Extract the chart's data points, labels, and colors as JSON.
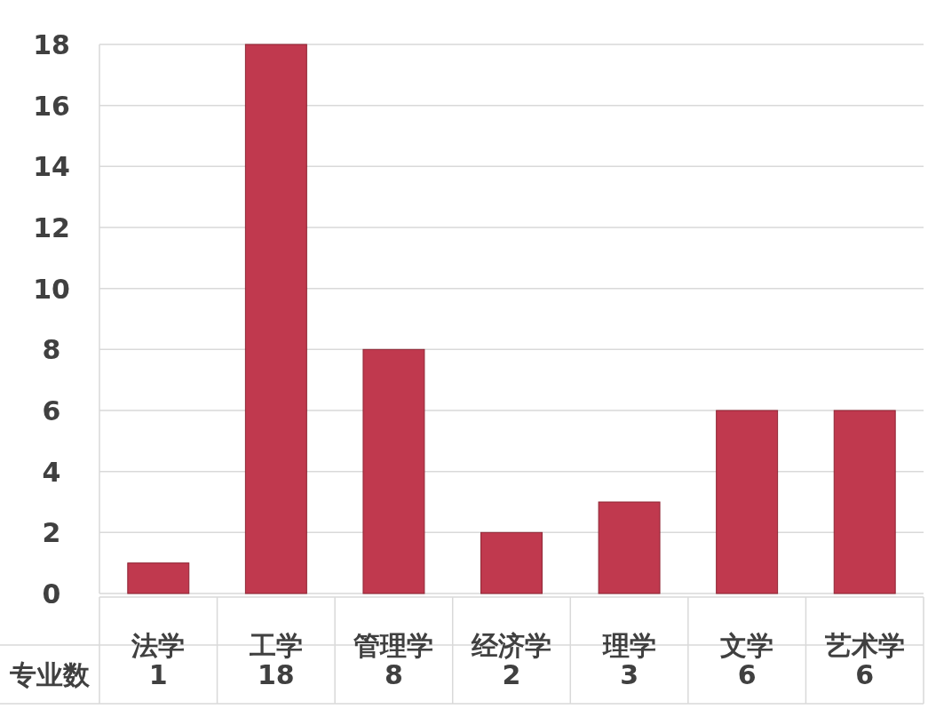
{
  "chart_data": {
    "type": "bar",
    "categories": [
      "法学",
      "工学",
      "管理学",
      "经济学",
      "理学",
      "文学",
      "艺术学"
    ],
    "series": [
      {
        "name": "专业数",
        "color": "#c0394e",
        "values": [
          1,
          18,
          8,
          2,
          3,
          6,
          6
        ]
      }
    ],
    "ylim": [
      0,
      18
    ],
    "yticks": [
      0,
      2,
      4,
      6,
      8,
      10,
      12,
      14,
      16,
      18
    ],
    "grid": "y",
    "data_labels": true
  }
}
